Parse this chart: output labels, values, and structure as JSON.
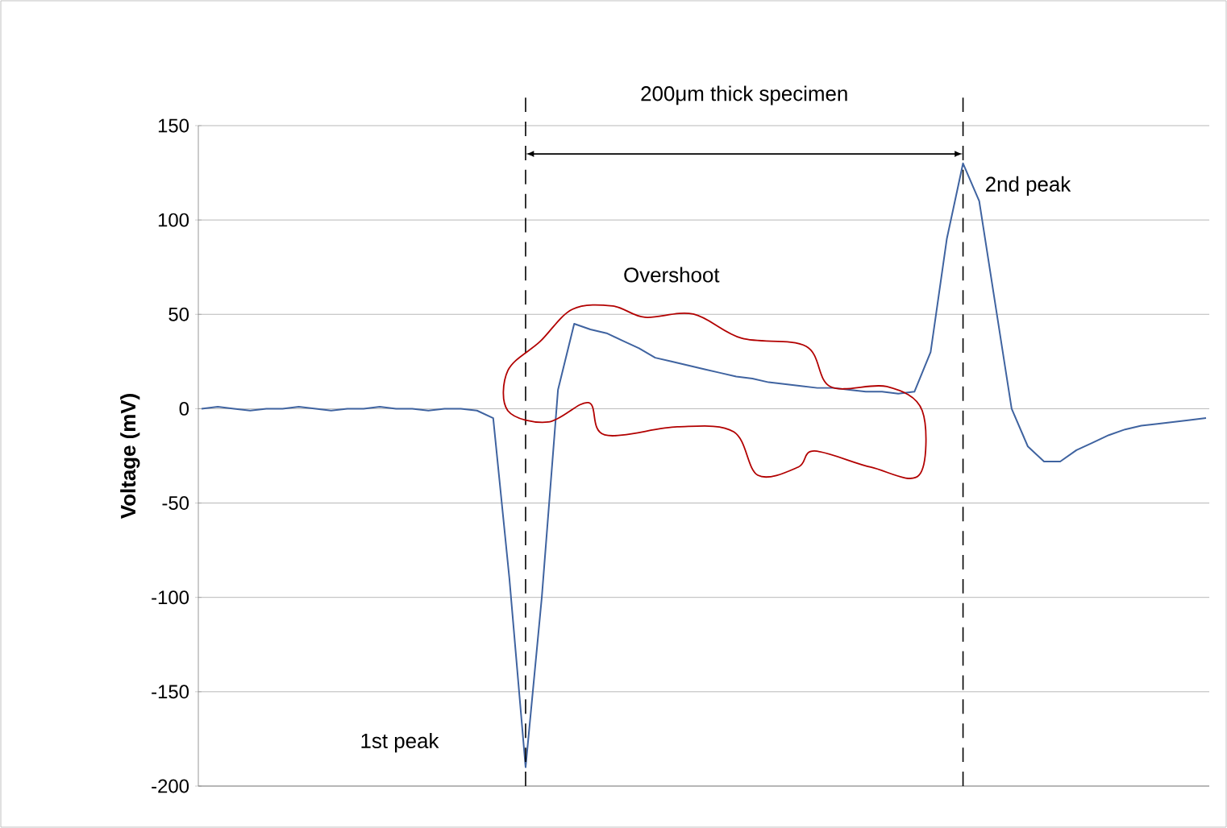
{
  "chart_data": {
    "type": "line",
    "ylabel": "Voltage (mV)",
    "categories": [
      null,
      null,
      null,
      null,
      null,
      null,
      null,
      null,
      null,
      null,
      null,
      null,
      null,
      null,
      null,
      null,
      null,
      null,
      null,
      null,
      null,
      null,
      null,
      null,
      null,
      null,
      null,
      null,
      null,
      null,
      null,
      null,
      null,
      null,
      null,
      null,
      null,
      null,
      null,
      null,
      null,
      null,
      null,
      null,
      null,
      null,
      null,
      null,
      null,
      null,
      null,
      null,
      null,
      null,
      null,
      null,
      null,
      null,
      null,
      null,
      null,
      null,
      null
    ],
    "series": [
      {
        "color": "#3f63a0",
        "values": [
          0,
          1,
          0,
          -1,
          0,
          0,
          1,
          0,
          -1,
          0,
          0,
          1,
          0,
          0,
          -1,
          0,
          0,
          -1,
          -5,
          -90,
          -190,
          -100,
          10,
          45,
          42,
          40,
          36,
          32,
          27,
          25,
          23,
          21,
          19,
          17,
          16,
          14,
          13,
          12,
          11,
          11,
          10,
          9,
          9,
          8,
          9,
          30,
          90,
          130,
          110,
          55,
          0,
          -20,
          -28,
          -28,
          -22,
          -18,
          -14,
          -11,
          -9,
          -8,
          -7,
          -6,
          -5
        ]
      }
    ],
    "ylim": [
      -200,
      150
    ],
    "yticks": [
      -200,
      -150,
      -100,
      -50,
      0,
      50,
      100,
      150
    ],
    "grid": "y",
    "annotations": [
      "200μm thick specimen",
      "Overshoot",
      "1st peak",
      "2nd peak"
    ]
  }
}
